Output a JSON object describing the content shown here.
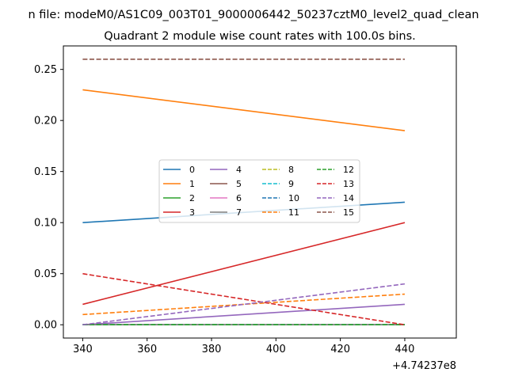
{
  "suptitle": "n file: modeM0/AS1C09_003T01_9000006442_50237cztM0_level2_quad_clean",
  "chart_data": {
    "type": "line",
    "title": "Quadrant 2 module wise count rates with 100.0s bins.",
    "xlabel": "",
    "ylabel": "",
    "x_offset_label": "+4.74237e8",
    "x": [
      340,
      440
    ],
    "xlim": [
      334,
      456
    ],
    "ylim": [
      -0.013,
      0.273
    ],
    "xticks": [
      340,
      360,
      380,
      400,
      420,
      440
    ],
    "xtick_labels": [
      "340",
      "360",
      "380",
      "400",
      "420",
      "440"
    ],
    "yticks": [
      0.0,
      0.05,
      0.1,
      0.15,
      0.2,
      0.25
    ],
    "ytick_labels": [
      "0.00",
      "0.05",
      "0.10",
      "0.15",
      "0.20",
      "0.25"
    ],
    "grid": false,
    "legend_placement": "center-left",
    "series": [
      {
        "name": "0",
        "values": [
          0.1,
          0.12
        ],
        "color": "#1f77b4",
        "dash": false
      },
      {
        "name": "1",
        "values": [
          0.23,
          0.19
        ],
        "color": "#ff7f0e",
        "dash": false
      },
      {
        "name": "2",
        "values": [
          0.0,
          0.0
        ],
        "color": "#2ca02c",
        "dash": false
      },
      {
        "name": "3",
        "values": [
          0.02,
          0.1
        ],
        "color": "#d62728",
        "dash": false
      },
      {
        "name": "4",
        "values": [
          0.0,
          0.02
        ],
        "color": "#9467bd",
        "dash": false
      },
      {
        "name": "5",
        "values": [
          0.0,
          0.0
        ],
        "color": "#8c564b",
        "dash": false
      },
      {
        "name": "6",
        "values": [
          0.0,
          0.0
        ],
        "color": "#e377c2",
        "dash": false
      },
      {
        "name": "7",
        "values": [
          0.0,
          0.0
        ],
        "color": "#7f7f7f",
        "dash": false
      },
      {
        "name": "8",
        "values": [
          0.0,
          0.0
        ],
        "color": "#bcbd22",
        "dash": true
      },
      {
        "name": "9",
        "values": [
          0.0,
          0.0
        ],
        "color": "#17becf",
        "dash": true
      },
      {
        "name": "10",
        "values": [
          0.0,
          0.0
        ],
        "color": "#1f77b4",
        "dash": true
      },
      {
        "name": "11",
        "values": [
          0.01,
          0.03
        ],
        "color": "#ff7f0e",
        "dash": true
      },
      {
        "name": "12",
        "values": [
          0.0,
          0.0
        ],
        "color": "#2ca02c",
        "dash": true
      },
      {
        "name": "13",
        "values": [
          0.05,
          0.0
        ],
        "color": "#d62728",
        "dash": true
      },
      {
        "name": "14",
        "values": [
          0.0,
          0.04
        ],
        "color": "#9467bd",
        "dash": true
      },
      {
        "name": "15",
        "values": [
          0.26,
          0.26
        ],
        "color": "#8c564b",
        "dash": true
      }
    ]
  }
}
